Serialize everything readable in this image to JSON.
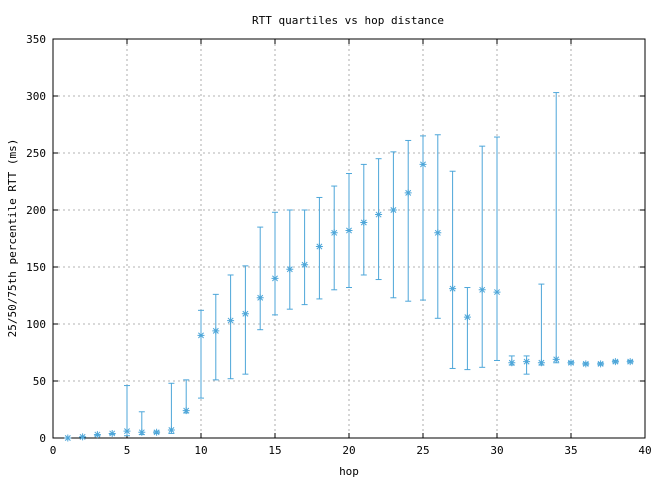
{
  "chart_data": {
    "type": "scatter",
    "title": "RTT quartiles vs hop distance",
    "xlabel": "hop",
    "ylabel": "25/50/75th percentile RTT (ms)",
    "xlim": [
      0,
      40
    ],
    "ylim": [
      0,
      350
    ],
    "xticks": [
      0,
      5,
      10,
      15,
      20,
      25,
      30,
      35,
      40
    ],
    "yticks": [
      0,
      50,
      100,
      150,
      200,
      250,
      300,
      350
    ],
    "grid": true,
    "color": "#4da6d9",
    "marker": "asterisk",
    "series": [
      {
        "points": [
          {
            "x": 1,
            "low": 0,
            "median": 0,
            "high": 0
          },
          {
            "x": 2,
            "low": 1,
            "median": 1,
            "high": 1
          },
          {
            "x": 3,
            "low": 2,
            "median": 3,
            "high": 3
          },
          {
            "x": 4,
            "low": 3,
            "median": 4,
            "high": 4
          },
          {
            "x": 5,
            "low": 2,
            "median": 6,
            "high": 46
          },
          {
            "x": 6,
            "low": 3,
            "median": 5,
            "high": 23
          },
          {
            "x": 7,
            "low": 4,
            "median": 5,
            "high": 6
          },
          {
            "x": 8,
            "low": 4,
            "median": 7,
            "high": 48
          },
          {
            "x": 9,
            "low": 22,
            "median": 24,
            "high": 51
          },
          {
            "x": 10,
            "low": 35,
            "median": 90,
            "high": 112
          },
          {
            "x": 11,
            "low": 51,
            "median": 94,
            "high": 126
          },
          {
            "x": 12,
            "low": 52,
            "median": 103,
            "high": 143
          },
          {
            "x": 13,
            "low": 56,
            "median": 109,
            "high": 151
          },
          {
            "x": 14,
            "low": 95,
            "median": 123,
            "high": 185
          },
          {
            "x": 15,
            "low": 108,
            "median": 140,
            "high": 198
          },
          {
            "x": 16,
            "low": 113,
            "median": 148,
            "high": 200
          },
          {
            "x": 17,
            "low": 117,
            "median": 152,
            "high": 200
          },
          {
            "x": 18,
            "low": 122,
            "median": 168,
            "high": 211
          },
          {
            "x": 19,
            "low": 130,
            "median": 180,
            "high": 221
          },
          {
            "x": 20,
            "low": 132,
            "median": 182,
            "high": 232
          },
          {
            "x": 21,
            "low": 143,
            "median": 189,
            "high": 240
          },
          {
            "x": 22,
            "low": 139,
            "median": 196,
            "high": 245
          },
          {
            "x": 23,
            "low": 123,
            "median": 200,
            "high": 251
          },
          {
            "x": 24,
            "low": 120,
            "median": 215,
            "high": 261
          },
          {
            "x": 25,
            "low": 121,
            "median": 240,
            "high": 265
          },
          {
            "x": 26,
            "low": 105,
            "median": 180,
            "high": 266
          },
          {
            "x": 27,
            "low": 61,
            "median": 131,
            "high": 234
          },
          {
            "x": 28,
            "low": 60,
            "median": 106,
            "high": 132
          },
          {
            "x": 29,
            "low": 62,
            "median": 130,
            "high": 256
          },
          {
            "x": 30,
            "low": 68,
            "median": 128,
            "high": 264
          },
          {
            "x": 31,
            "low": 64,
            "median": 66,
            "high": 72
          },
          {
            "x": 32,
            "low": 56,
            "median": 67,
            "high": 72
          },
          {
            "x": 33,
            "low": 64,
            "median": 66,
            "high": 135
          },
          {
            "x": 34,
            "low": 66,
            "median": 69,
            "high": 303
          },
          {
            "x": 35,
            "low": 65,
            "median": 66,
            "high": 67
          },
          {
            "x": 36,
            "low": 64,
            "median": 65,
            "high": 66
          },
          {
            "x": 37,
            "low": 64,
            "median": 65,
            "high": 66
          },
          {
            "x": 38,
            "low": 66,
            "median": 67,
            "high": 68
          },
          {
            "x": 39,
            "low": 66,
            "median": 67,
            "high": 68
          }
        ]
      }
    ]
  }
}
